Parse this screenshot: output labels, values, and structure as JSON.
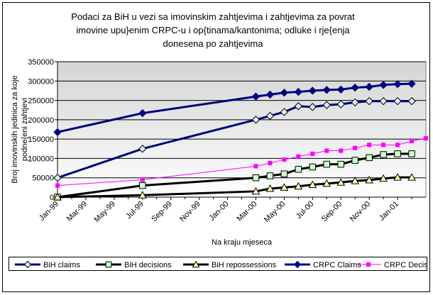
{
  "chart_data": {
    "type": "line",
    "title_lines": [
      "Podaci za BiH u vezi sa imovinskim zahtjevima i zahtjevima za povrat",
      "imovine upu}enim CRPC-u i op{tinama/kantonima; odluke i rje{enja",
      "donesena po zahtjevima"
    ],
    "xlabel": "Na kraju mjeseca",
    "ylabel_lines": [
      "Broj imovinskih jedinica za koje",
      "podne{eni zahtjevi"
    ],
    "x_tick_labels": [
      "Jan-99",
      "Mar-99",
      "May-99",
      "Jul-99",
      "Sep-99",
      "Nov-99",
      "Jan-00",
      "Mar-00",
      "May-00",
      "Jul-00",
      "Sep-00",
      "Nov-00",
      "Jan-01"
    ],
    "y_tick_labels": [
      "0",
      "50000",
      "100000",
      "150000",
      "200000",
      "250000",
      "300000",
      "350000"
    ],
    "ylim": [
      0,
      350000
    ],
    "xlim": [
      0,
      26
    ],
    "grid": "horizontal",
    "legend_position": "bottom",
    "series": [
      {
        "name": "BiH claims",
        "color": "#000080",
        "marker": "diamond",
        "marker_fill": "#ddeeff",
        "line_width": 3,
        "x": [
          0,
          6,
          14,
          15,
          16,
          17,
          18,
          19,
          20,
          21,
          22,
          23,
          24,
          25
        ],
        "y": [
          50000,
          125000,
          200000,
          210000,
          220000,
          235000,
          233000,
          238000,
          240000,
          245000,
          248000,
          248000,
          248000,
          248000
        ]
      },
      {
        "name": "BiH decisions",
        "color": "#000000",
        "marker": "square",
        "marker_fill": "#ccffcc",
        "line_width": 3,
        "x": [
          0,
          6,
          14,
          15,
          16,
          17,
          18,
          19,
          20,
          21,
          22,
          23,
          24,
          25
        ],
        "y": [
          0,
          30000,
          50000,
          55000,
          60000,
          72000,
          78000,
          85000,
          85000,
          95000,
          102000,
          110000,
          112000,
          112000
        ]
      },
      {
        "name": "BiH repossessions",
        "color": "#000000",
        "marker": "triangle",
        "marker_fill": "#ffffaa",
        "line_width": 3,
        "x": [
          0,
          6,
          14,
          15,
          16,
          17,
          18,
          19,
          20,
          21,
          22,
          23,
          24,
          25
        ],
        "y": [
          0,
          5000,
          15000,
          22000,
          25000,
          28000,
          32000,
          35000,
          38000,
          42000,
          44000,
          48000,
          51000,
          51000
        ]
      },
      {
        "name": "CRPC Claims",
        "color": "#000080",
        "marker": "diamond",
        "marker_fill": "#000080",
        "line_width": 3,
        "x": [
          0,
          6,
          14,
          15,
          16,
          17,
          18,
          19,
          20,
          21,
          22,
          23,
          24,
          25
        ],
        "y": [
          168000,
          217000,
          260000,
          265000,
          270000,
          272000,
          275000,
          277000,
          278000,
          283000,
          285000,
          290000,
          292000,
          293000
        ]
      },
      {
        "name": "CRPC Decisions",
        "color": "#ff00ff",
        "marker": "square",
        "marker_fill": "#ff00ff",
        "line_width": 1,
        "x": [
          0,
          6,
          14,
          15,
          16,
          17,
          18,
          19,
          20,
          21,
          22,
          23,
          24,
          25,
          26
        ],
        "y": [
          30000,
          45000,
          80000,
          88000,
          97000,
          105000,
          112000,
          120000,
          120000,
          127000,
          135000,
          135000,
          135000,
          145000,
          152000
        ]
      }
    ]
  }
}
